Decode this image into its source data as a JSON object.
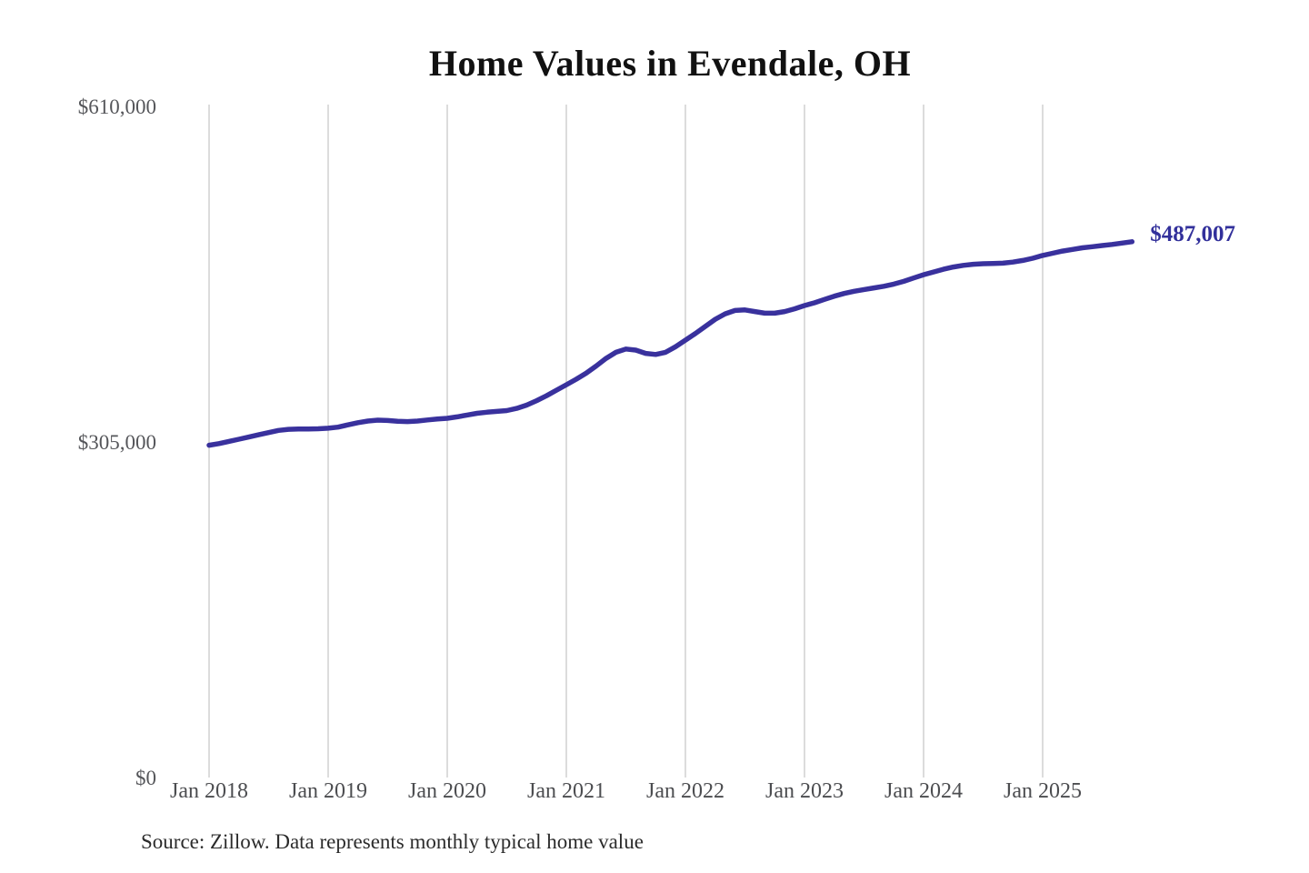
{
  "page": {
    "background": "#ffffff"
  },
  "chart_data": {
    "type": "line",
    "title": "Home Values in Evendale, OH",
    "source_note": "Source: Zillow. Data represents monthly typical home value",
    "series_name": "Monthly typical home value",
    "end_label": "$487,007",
    "final_value": 487007,
    "unit": "USD",
    "ylim": [
      0,
      610000
    ],
    "grid": "vertical-only",
    "legend": "none",
    "line_color": "#39319d",
    "end_label_color": "#32309b",
    "gridline_color": "#c9c9c9",
    "x_tick_labels": [
      "Jan 2018",
      "Jan 2019",
      "Jan 2020",
      "Jan 2021",
      "Jan 2022",
      "Jan 2023",
      "Jan 2024",
      "Jan 2025"
    ],
    "y_ticks": [
      {
        "label": "$0",
        "value": 0
      },
      {
        "label": "$305,000",
        "value": 305000
      },
      {
        "label": "$610,000",
        "value": 610000
      }
    ],
    "x": [
      "2018-01",
      "2018-02",
      "2018-03",
      "2018-04",
      "2018-05",
      "2018-06",
      "2018-07",
      "2018-08",
      "2018-09",
      "2018-10",
      "2018-11",
      "2018-12",
      "2019-01",
      "2019-02",
      "2019-03",
      "2019-04",
      "2019-05",
      "2019-06",
      "2019-07",
      "2019-08",
      "2019-09",
      "2019-10",
      "2019-11",
      "2019-12",
      "2020-01",
      "2020-02",
      "2020-03",
      "2020-04",
      "2020-05",
      "2020-06",
      "2020-07",
      "2020-08",
      "2020-09",
      "2020-10",
      "2020-11",
      "2020-12",
      "2021-01",
      "2021-02",
      "2021-03",
      "2021-04",
      "2021-05",
      "2021-06",
      "2021-07",
      "2021-08",
      "2021-09",
      "2021-10",
      "2021-11",
      "2021-12",
      "2022-01",
      "2022-02",
      "2022-03",
      "2022-04",
      "2022-05",
      "2022-06",
      "2022-07",
      "2022-08",
      "2022-09",
      "2022-10",
      "2022-11",
      "2022-12",
      "2023-01",
      "2023-02",
      "2023-03",
      "2023-04",
      "2023-05",
      "2023-06",
      "2023-07",
      "2023-08",
      "2023-09",
      "2023-10",
      "2023-11",
      "2023-12",
      "2024-01",
      "2024-02",
      "2024-03",
      "2024-04",
      "2024-05",
      "2024-06",
      "2024-07",
      "2024-08",
      "2024-09",
      "2024-10",
      "2024-11",
      "2024-12",
      "2025-01",
      "2025-02",
      "2025-03",
      "2025-04",
      "2025-05",
      "2025-06",
      "2025-07",
      "2025-08",
      "2025-09",
      "2025-10"
    ],
    "values": [
      302000,
      303500,
      305500,
      307500,
      309500,
      311500,
      313500,
      315500,
      316500,
      316800,
      316800,
      317000,
      317500,
      318500,
      320500,
      322500,
      324000,
      324800,
      324500,
      323800,
      323500,
      324000,
      325000,
      325800,
      326500,
      327800,
      329500,
      331000,
      332000,
      332800,
      333500,
      335500,
      338500,
      342500,
      347000,
      352000,
      357000,
      362000,
      367500,
      374000,
      381000,
      386500,
      389500,
      388500,
      385500,
      384500,
      386500,
      391500,
      397500,
      403500,
      410000,
      416500,
      421500,
      424500,
      425000,
      423500,
      422000,
      422000,
      423500,
      426000,
      429000,
      431500,
      434500,
      437500,
      440000,
      442000,
      443500,
      445000,
      446500,
      448500,
      451000,
      454000,
      457000,
      459500,
      462000,
      464000,
      465500,
      466500,
      467000,
      467200,
      467500,
      468500,
      470000,
      472000,
      474500,
      476500,
      478500,
      480000,
      481500,
      482500,
      483500,
      484500,
      485800,
      487007
    ]
  }
}
